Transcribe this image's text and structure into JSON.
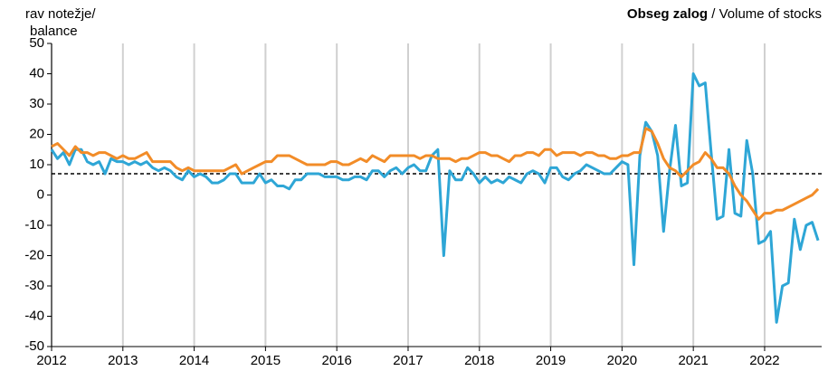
{
  "chart_data": {
    "type": "line",
    "title": "Obseg zalog",
    "subtitle": "/ Volume of stocks",
    "ylabel": [
      "rav notežje/",
      "balance"
    ],
    "x": [
      2012,
      2012.083,
      2012.167,
      2012.25,
      2012.333,
      2012.417,
      2012.5,
      2012.583,
      2012.667,
      2012.75,
      2012.833,
      2012.917,
      2013,
      2013.083,
      2013.167,
      2013.25,
      2013.333,
      2013.417,
      2013.5,
      2013.583,
      2013.667,
      2013.75,
      2013.833,
      2013.917,
      2014,
      2014.083,
      2014.167,
      2014.25,
      2014.333,
      2014.417,
      2014.5,
      2014.583,
      2014.667,
      2014.75,
      2014.833,
      2014.917,
      2015,
      2015.083,
      2015.167,
      2015.25,
      2015.333,
      2015.417,
      2015.5,
      2015.583,
      2015.667,
      2015.75,
      2015.833,
      2015.917,
      2016,
      2016.083,
      2016.167,
      2016.25,
      2016.333,
      2016.417,
      2016.5,
      2016.583,
      2016.667,
      2016.75,
      2016.833,
      2016.917,
      2017,
      2017.083,
      2017.167,
      2017.25,
      2017.333,
      2017.417,
      2017.5,
      2017.583,
      2017.667,
      2017.75,
      2017.833,
      2017.917,
      2018,
      2018.083,
      2018.167,
      2018.25,
      2018.333,
      2018.417,
      2018.5,
      2018.583,
      2018.667,
      2018.75,
      2018.833,
      2018.917,
      2019,
      2019.083,
      2019.167,
      2019.25,
      2019.333,
      2019.417,
      2019.5,
      2019.583,
      2019.667,
      2019.75,
      2019.833,
      2019.917,
      2020,
      2020.083,
      2020.167,
      2020.25,
      2020.333,
      2020.417,
      2020.5,
      2020.583,
      2020.667,
      2020.75,
      2020.833,
      2020.917,
      2021,
      2021.083,
      2021.167,
      2021.25,
      2021.333,
      2021.417,
      2021.5,
      2021.583,
      2021.667,
      2021.75,
      2021.833,
      2021.917,
      2022,
      2022.083,
      2022.167,
      2022.25,
      2022.333,
      2022.417,
      2022.5,
      2022.583,
      2022.667,
      2022.75
    ],
    "series": [
      {
        "color": "#2ea6d6",
        "values": [
          15,
          12,
          14,
          10,
          15,
          15,
          11,
          10,
          11,
          7,
          12,
          11,
          11,
          10,
          11,
          10,
          11,
          9,
          8,
          9,
          8,
          6,
          5,
          8,
          6,
          7,
          6,
          4,
          4,
          5,
          7,
          7,
          4,
          4,
          4,
          7,
          4,
          5,
          3,
          3,
          2,
          5,
          5,
          7,
          7,
          7,
          6,
          6,
          6,
          5,
          5,
          6,
          6,
          5,
          8,
          8,
          6,
          8,
          9,
          7,
          9,
          10,
          8,
          8,
          13,
          15,
          -20,
          8,
          5,
          5,
          9,
          7,
          4,
          6,
          4,
          5,
          4,
          6,
          5,
          4,
          7,
          8,
          7,
          4,
          9,
          9,
          6,
          5,
          7,
          8,
          10,
          9,
          8,
          7,
          7,
          9,
          11,
          10,
          -23,
          13,
          24,
          21,
          13,
          -12,
          8,
          23,
          3,
          4,
          40,
          36,
          37,
          14,
          -8,
          -7,
          15,
          -6,
          -7,
          18,
          7,
          -16,
          -15,
          -12,
          -42,
          -30,
          -29,
          -8,
          -18,
          -10,
          -9,
          -15
        ]
      },
      {
        "color": "#f28c28",
        "values": [
          16,
          17,
          15,
          13,
          16,
          14,
          14,
          13,
          14,
          14,
          13,
          12,
          13,
          12,
          12,
          13,
          14,
          11,
          11,
          11,
          11,
          9,
          8,
          9,
          8,
          8,
          8,
          8,
          8,
          8,
          9,
          10,
          7,
          8,
          9,
          10,
          11,
          11,
          13,
          13,
          13,
          12,
          11,
          10,
          10,
          10,
          10,
          11,
          11,
          10,
          10,
          11,
          12,
          11,
          13,
          12,
          11,
          13,
          13,
          13,
          13,
          13,
          12,
          13,
          13,
          12,
          12,
          12,
          11,
          12,
          12,
          13,
          14,
          14,
          13,
          13,
          12,
          11,
          13,
          13,
          14,
          14,
          13,
          15,
          15,
          13,
          14,
          14,
          14,
          13,
          14,
          14,
          13,
          13,
          12,
          12,
          13,
          13,
          14,
          14,
          22,
          21,
          17,
          12,
          9,
          8,
          6,
          8,
          10,
          11,
          14,
          12,
          9,
          9,
          7,
          3,
          0,
          -2,
          -5,
          -8,
          -6,
          -6,
          -5,
          -5,
          -4,
          -3,
          -2,
          -1,
          0,
          2
        ]
      }
    ],
    "reference_line": 7,
    "xlim": [
      2012,
      2022.8
    ],
    "xticks": [
      2012,
      2013,
      2014,
      2015,
      2016,
      2017,
      2018,
      2019,
      2020,
      2021,
      2022
    ],
    "ylim": [
      -50,
      50
    ],
    "yticks": [
      -50,
      -40,
      -30,
      -20,
      -10,
      0,
      10,
      20,
      30,
      40,
      50
    ],
    "grid": "x"
  }
}
